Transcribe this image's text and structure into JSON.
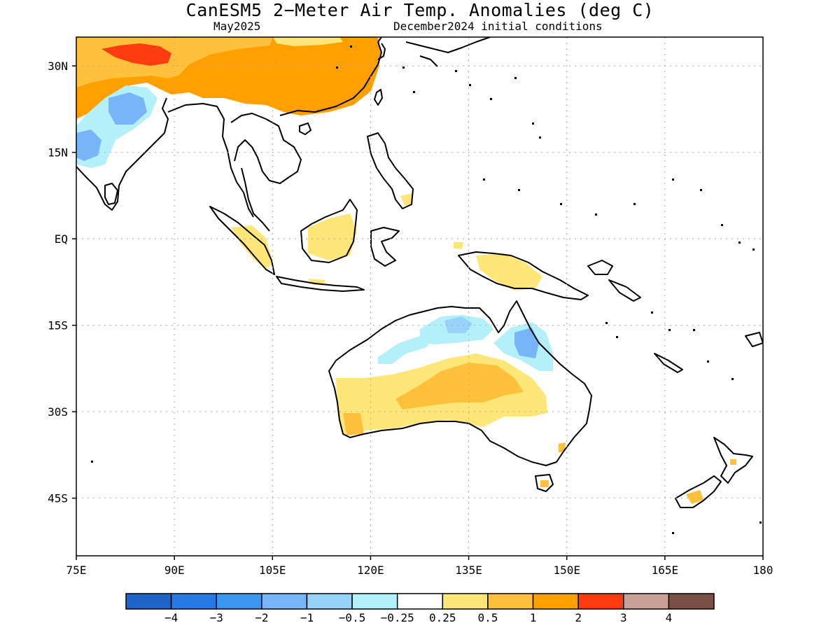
{
  "title": "CanESM5 2−Meter Air Temp. Anomalies (deg C)",
  "subtitle_left": "May2025",
  "subtitle_right": "December2024 initial conditions",
  "map": {
    "lon_range": [
      75,
      180
    ],
    "lat_range": [
      -55,
      35
    ],
    "x_ticks": [
      {
        "value": 75,
        "label": "75E"
      },
      {
        "value": 90,
        "label": "90E"
      },
      {
        "value": 105,
        "label": "105E"
      },
      {
        "value": 120,
        "label": "120E"
      },
      {
        "value": 135,
        "label": "135E"
      },
      {
        "value": 150,
        "label": "150E"
      },
      {
        "value": 165,
        "label": "165E"
      },
      {
        "value": 180,
        "label": "180"
      }
    ],
    "y_ticks": [
      {
        "value": 30,
        "label": "30N"
      },
      {
        "value": 15,
        "label": "15N"
      },
      {
        "value": 0,
        "label": "EQ"
      },
      {
        "value": -15,
        "label": "15S"
      },
      {
        "value": -30,
        "label": "30S"
      },
      {
        "value": -45,
        "label": "45S"
      }
    ],
    "grid": true
  },
  "colorbar": {
    "colors": [
      "#1e64c8",
      "#2878e6",
      "#3c96f0",
      "#78b4f8",
      "#96d2fa",
      "#b4f0fa",
      "#ffffff",
      "#ffe678",
      "#ffc03c",
      "#ffa000",
      "#ff3c10",
      "#c8a096",
      "#7a5046"
    ],
    "labels": [
      "−4",
      "−3",
      "−2",
      "−1",
      "−0.5",
      "−0.25",
      "0.25",
      "0.5",
      "1",
      "2",
      "3",
      "4"
    ]
  },
  "anomaly_colors": {
    "strong_warm": "#ff3c10",
    "warm": "#ffa000",
    "moderate_warm": "#ffc03c",
    "weak_warm": "#ffe678",
    "weak_cool": "#b4f0fa",
    "moderate_cool": "#96d2fa",
    "cool": "#78b4f8",
    "coast": "#000000",
    "grid": "#aaaaaa"
  }
}
